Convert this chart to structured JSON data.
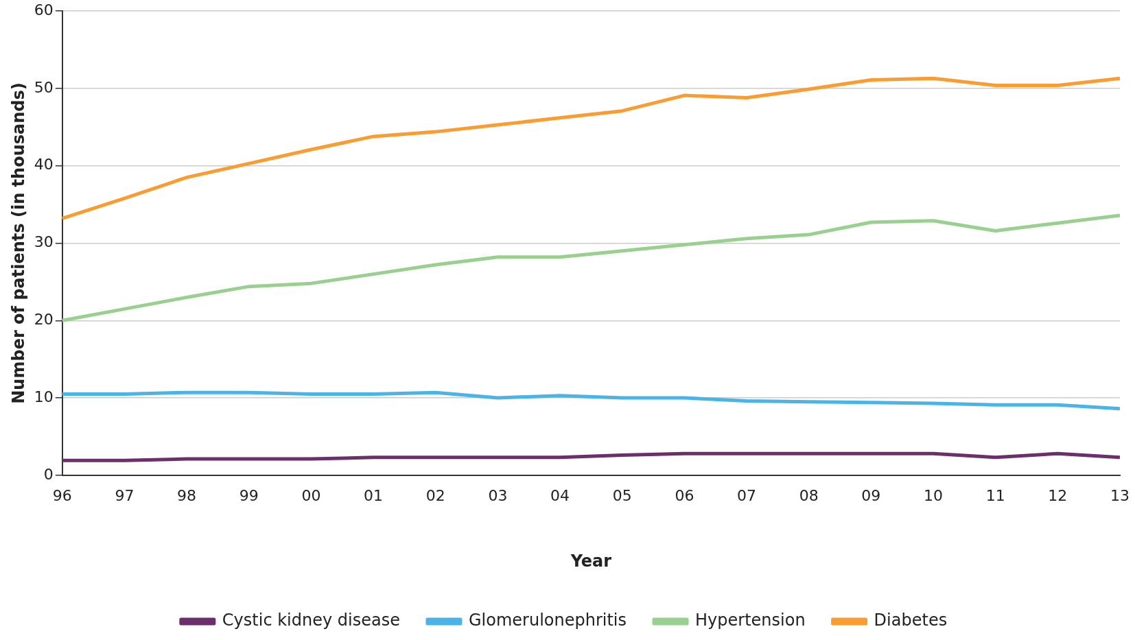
{
  "chart_data": {
    "type": "line",
    "xlabel": "Year",
    "ylabel": "Number of patients (in thousands)",
    "categories": [
      "96",
      "97",
      "98",
      "99",
      "00",
      "01",
      "02",
      "03",
      "04",
      "05",
      "06",
      "07",
      "08",
      "09",
      "10",
      "11",
      "12",
      "13"
    ],
    "ylim": [
      0,
      60
    ],
    "yticks": [
      0,
      10,
      20,
      30,
      40,
      50,
      60
    ],
    "grid": "y",
    "legend": "bottom",
    "marker": "none",
    "line_style": "solid",
    "series": [
      {
        "name": "Cystic kidney disease",
        "color": "#6b2f6b",
        "values": [
          1.9,
          1.9,
          2.1,
          2.1,
          2.1,
          2.3,
          2.3,
          2.3,
          2.3,
          2.6,
          2.8,
          2.8,
          2.8,
          2.8,
          2.8,
          2.3,
          2.8,
          2.3
        ]
      },
      {
        "name": "Glomerulonephritis",
        "color": "#4bb4e6",
        "values": [
          10.5,
          10.5,
          10.7,
          10.7,
          10.5,
          10.5,
          10.7,
          10.0,
          10.3,
          10.0,
          10.0,
          9.6,
          9.5,
          9.4,
          9.3,
          9.1,
          9.1,
          8.6
        ]
      },
      {
        "name": "Hypertension",
        "color": "#99cf8f",
        "values": [
          20.0,
          21.5,
          23.0,
          24.4,
          24.8,
          26.0,
          27.2,
          28.2,
          28.2,
          29.0,
          29.8,
          30.6,
          31.1,
          32.7,
          32.9,
          31.6,
          32.6,
          33.6
        ]
      },
      {
        "name": "Diabetes",
        "color": "#f99d33",
        "values": [
          33.2,
          35.8,
          38.5,
          40.3,
          42.1,
          43.8,
          44.4,
          45.3,
          46.2,
          47.1,
          49.1,
          48.8,
          49.9,
          51.1,
          51.3,
          50.4,
          50.4,
          51.3
        ]
      }
    ]
  }
}
